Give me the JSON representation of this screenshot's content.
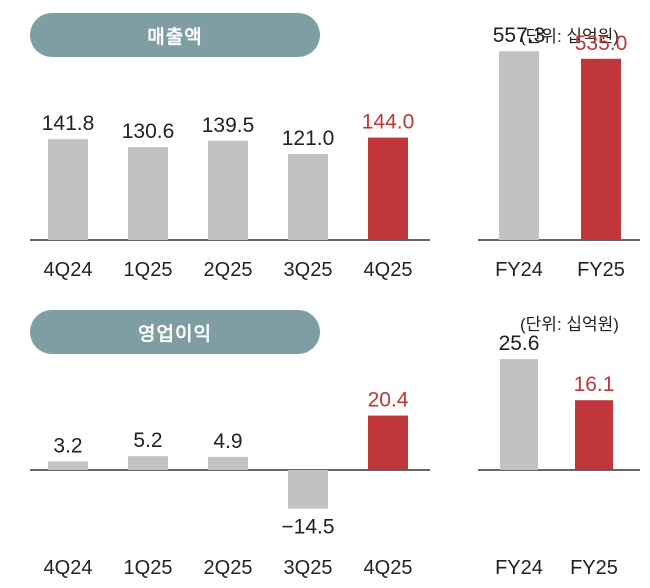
{
  "colors": {
    "gray": "#c2c2c2",
    "highlight": "#c0363a",
    "label": "#222222",
    "highlight_label": "#c0363a",
    "pill": "#7f9ea4"
  },
  "sales": {
    "title": "매출액",
    "unit": "(단위: 십억원)"
  },
  "op": {
    "title": "영업이익",
    "unit": "(단위: 십억원)"
  },
  "chart_data": [
    {
      "type": "bar",
      "categories": [
        "4Q24",
        "1Q25",
        "2Q25",
        "3Q25",
        "4Q25"
      ],
      "values": [
        141.8,
        130.6,
        139.5,
        121.0,
        144.0
      ],
      "labels": [
        "141.8",
        "130.6",
        "139.5",
        "121.0",
        "144.0"
      ],
      "highlight": [
        false,
        false,
        false,
        false,
        true
      ],
      "ylim": [
        0,
        180
      ]
    },
    {
      "type": "bar",
      "categories": [
        "FY24",
        "FY25"
      ],
      "values": [
        557.3,
        535.0
      ],
      "labels": [
        "557.3",
        "535.0"
      ],
      "highlight": [
        false,
        true
      ],
      "ylim": [
        0,
        620
      ]
    },
    {
      "type": "bar",
      "categories": [
        "4Q24",
        "1Q25",
        "2Q25",
        "3Q25",
        "4Q25"
      ],
      "values": [
        3.2,
        5.2,
        4.9,
        -14.5,
        20.4
      ],
      "labels": [
        "3.2",
        "5.2",
        "4.9",
        "−14.5",
        "20.4"
      ],
      "highlight": [
        false,
        false,
        false,
        false,
        true
      ],
      "ylim": [
        -20,
        30
      ]
    },
    {
      "type": "bar",
      "categories": [
        "FY24",
        "FY25"
      ],
      "values": [
        25.6,
        16.1
      ],
      "labels": [
        "25.6",
        "16.1"
      ],
      "highlight": [
        false,
        true
      ],
      "ylim": [
        0,
        30
      ]
    }
  ]
}
